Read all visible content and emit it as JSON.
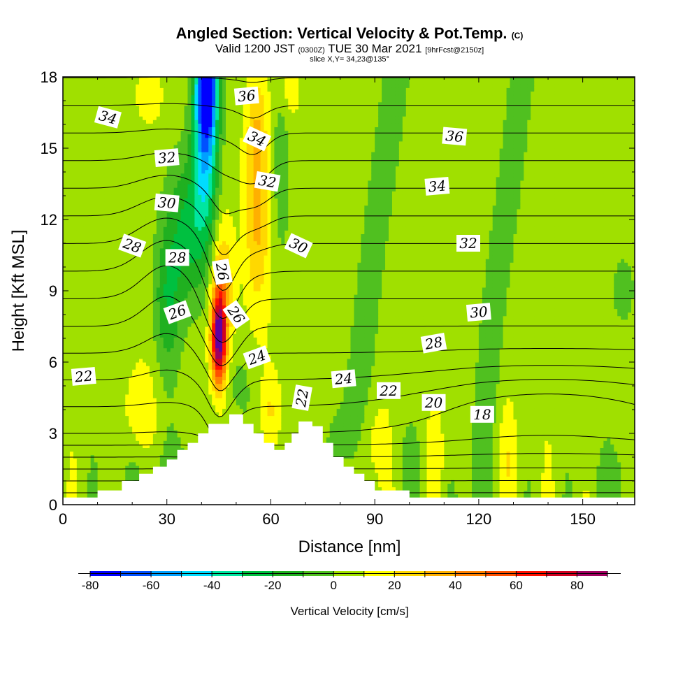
{
  "title": {
    "line1": "Angled Section: Vertical Velocity & Pot.Temp.",
    "line1_tag": "(C)",
    "line2_a": "Valid 1200 JST",
    "line2_b": "(0300Z)",
    "line2_c": "TUE 30 Mar 2021",
    "line2_d": "[9hrFcst@2150z]",
    "line3": "slice X,Y= 34,23@135°"
  },
  "chart_data": {
    "type": "heatmap",
    "xlabel": "Distance [nm]",
    "ylabel": "Height [Kft MSL]",
    "xlim": [
      0,
      165
    ],
    "ylim": [
      0,
      18
    ],
    "xticks": [
      0,
      30,
      60,
      90,
      120,
      150
    ],
    "yticks": [
      0,
      3,
      6,
      9,
      12,
      15,
      18
    ],
    "colorbar": {
      "title": "Vertical Velocity [cm/s]",
      "levels": [
        -80,
        -70,
        -60,
        -50,
        -40,
        -30,
        -20,
        -10,
        0,
        10,
        20,
        30,
        40,
        50,
        60,
        70,
        80,
        90
      ],
      "ticks": [
        -80,
        -60,
        -40,
        -20,
        0,
        20,
        40,
        60,
        80
      ],
      "colors": [
        "#0000ff",
        "#0050ff",
        "#00a0ff",
        "#00dcff",
        "#00e6a0",
        "#00c040",
        "#20b020",
        "#50c020",
        "#a0e000",
        "#ffff00",
        "#ffd800",
        "#ffb000",
        "#ff8000",
        "#ff5000",
        "#ff1000",
        "#d00020",
        "#a00060",
        "#6000a0"
      ]
    },
    "terrain_heights_kft": [
      [
        0,
        0.3
      ],
      [
        10,
        0.6
      ],
      [
        17,
        1.0
      ],
      [
        22,
        1.3
      ],
      [
        26,
        1.6
      ],
      [
        30,
        1.9
      ],
      [
        33,
        2.3
      ],
      [
        36,
        2.6
      ],
      [
        39,
        3.0
      ],
      [
        42,
        3.4
      ],
      [
        48,
        3.8
      ],
      [
        52,
        3.4
      ],
      [
        55,
        3.0
      ],
      [
        58,
        2.6
      ],
      [
        61,
        2.3
      ],
      [
        64,
        2.6
      ],
      [
        66,
        3.0
      ],
      [
        68,
        3.5
      ],
      [
        72,
        3.3
      ],
      [
        75,
        2.6
      ],
      [
        78,
        2.0
      ],
      [
        81,
        1.6
      ],
      [
        84,
        1.3
      ],
      [
        87,
        1.0
      ],
      [
        90,
        0.6
      ],
      [
        100,
        0.3
      ],
      [
        165,
        0.3
      ]
    ],
    "velocity_features": [
      {
        "kind": "updraft",
        "x": 45,
        "y": 7.0,
        "peak_cm_s": 90
      },
      {
        "kind": "downdraft",
        "x": 42,
        "y": 17.5,
        "peak_cm_s": -80
      },
      {
        "kind": "updraft",
        "x": 56,
        "y": 12.0,
        "peak_cm_s": 30
      },
      {
        "kind": "sink",
        "x": 35,
        "y": 12.0,
        "peak_cm_s": -30
      }
    ],
    "isentrope_labels": [
      {
        "text": "34",
        "x": 13,
        "y": 16.3,
        "angle": 15
      },
      {
        "text": "32",
        "x": 30,
        "y": 14.6,
        "angle": -5
      },
      {
        "text": "30",
        "x": 30,
        "y": 12.7,
        "angle": 5
      },
      {
        "text": "28",
        "x": 20,
        "y": 10.9,
        "angle": 20
      },
      {
        "text": "28",
        "x": 33,
        "y": 10.4,
        "angle": 0
      },
      {
        "text": "26",
        "x": 33,
        "y": 8.1,
        "angle": -20
      },
      {
        "text": "22",
        "x": 6,
        "y": 5.4,
        "angle": -5
      },
      {
        "text": "36",
        "x": 53,
        "y": 17.2,
        "angle": -5
      },
      {
        "text": "34",
        "x": 56,
        "y": 15.4,
        "angle": 25
      },
      {
        "text": "32",
        "x": 59,
        "y": 13.6,
        "angle": 10
      },
      {
        "text": "30",
        "x": 68,
        "y": 10.9,
        "angle": 25
      },
      {
        "text": "26",
        "x": 46,
        "y": 9.8,
        "angle": 80
      },
      {
        "text": "26",
        "x": 50,
        "y": 8.0,
        "angle": 55
      },
      {
        "text": "24",
        "x": 56,
        "y": 6.2,
        "angle": -20
      },
      {
        "text": "22",
        "x": 69,
        "y": 4.5,
        "angle": -80
      },
      {
        "text": "24",
        "x": 81,
        "y": 5.3,
        "angle": -5
      },
      {
        "text": "22",
        "x": 94,
        "y": 4.8,
        "angle": 0
      },
      {
        "text": "20",
        "x": 107,
        "y": 4.3,
        "angle": 0
      },
      {
        "text": "18",
        "x": 121,
        "y": 3.8,
        "angle": 0
      },
      {
        "text": "28",
        "x": 107,
        "y": 6.8,
        "angle": -10
      },
      {
        "text": "30",
        "x": 120,
        "y": 8.1,
        "angle": -5
      },
      {
        "text": "32",
        "x": 117,
        "y": 11.0,
        "angle": 0
      },
      {
        "text": "34",
        "x": 108,
        "y": 13.4,
        "angle": -5
      },
      {
        "text": "36",
        "x": 113,
        "y": 15.5,
        "angle": 5
      }
    ]
  }
}
